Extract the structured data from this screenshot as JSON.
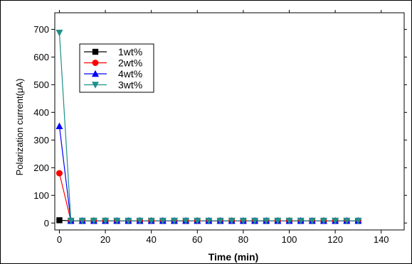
{
  "chart_data": {
    "type": "line",
    "title": "",
    "xlabel": "Time (min)",
    "ylabel": "Polarization current(μA)",
    "xlim": [
      -2,
      150
    ],
    "ylim": [
      -25,
      760
    ],
    "x_ticks": [
      0,
      20,
      40,
      60,
      80,
      100,
      120,
      140
    ],
    "y_ticks": [
      0,
      100,
      200,
      300,
      400,
      500,
      600,
      700
    ],
    "legend_position": "top-left",
    "grid": false,
    "series": [
      {
        "name": "1wt%",
        "color": "#000000",
        "marker": "square",
        "x": [
          0,
          5,
          10,
          15,
          20,
          25,
          30,
          35,
          40,
          45,
          50,
          55,
          60,
          65,
          70,
          75,
          80,
          85,
          90,
          95,
          100,
          105,
          110,
          115,
          120,
          125,
          130
        ],
        "y": [
          10,
          8,
          8,
          8,
          8,
          8,
          8,
          8,
          8,
          8,
          8,
          8,
          8,
          8,
          8,
          8,
          8,
          8,
          8,
          8,
          8,
          8,
          8,
          8,
          8,
          8,
          8
        ]
      },
      {
        "name": "2wt%",
        "color": "#ff0000",
        "marker": "circle",
        "x": [
          0,
          5,
          10,
          15,
          20,
          25,
          30,
          35,
          40,
          45,
          50,
          55,
          60,
          65,
          70,
          75,
          80,
          85,
          90,
          95,
          100,
          105,
          110,
          115,
          120,
          125,
          130
        ],
        "y": [
          180,
          8,
          8,
          8,
          8,
          8,
          8,
          8,
          8,
          8,
          8,
          8,
          8,
          8,
          8,
          8,
          8,
          8,
          8,
          8,
          8,
          8,
          8,
          8,
          8,
          8,
          8
        ]
      },
      {
        "name": "4wt%",
        "color": "#0000ff",
        "marker": "triangle-up",
        "x": [
          0,
          5,
          10,
          15,
          20,
          25,
          30,
          35,
          40,
          45,
          50,
          55,
          60,
          65,
          70,
          75,
          80,
          85,
          90,
          95,
          100,
          105,
          110,
          115,
          120,
          125,
          130
        ],
        "y": [
          350,
          8,
          8,
          8,
          8,
          8,
          8,
          8,
          8,
          8,
          8,
          8,
          8,
          8,
          8,
          8,
          8,
          8,
          8,
          8,
          8,
          8,
          8,
          8,
          8,
          8,
          8
        ]
      },
      {
        "name": "3wt%",
        "color": "#1f8f8a",
        "marker": "triangle-down",
        "x": [
          0,
          5,
          10,
          15,
          20,
          25,
          30,
          35,
          40,
          45,
          50,
          55,
          60,
          65,
          70,
          75,
          80,
          85,
          90,
          95,
          100,
          105,
          110,
          115,
          120,
          125,
          130
        ],
        "y": [
          688,
          8,
          8,
          8,
          8,
          8,
          8,
          8,
          8,
          8,
          8,
          8,
          8,
          8,
          8,
          8,
          8,
          8,
          8,
          8,
          8,
          8,
          8,
          8,
          8,
          8,
          8
        ]
      }
    ]
  }
}
